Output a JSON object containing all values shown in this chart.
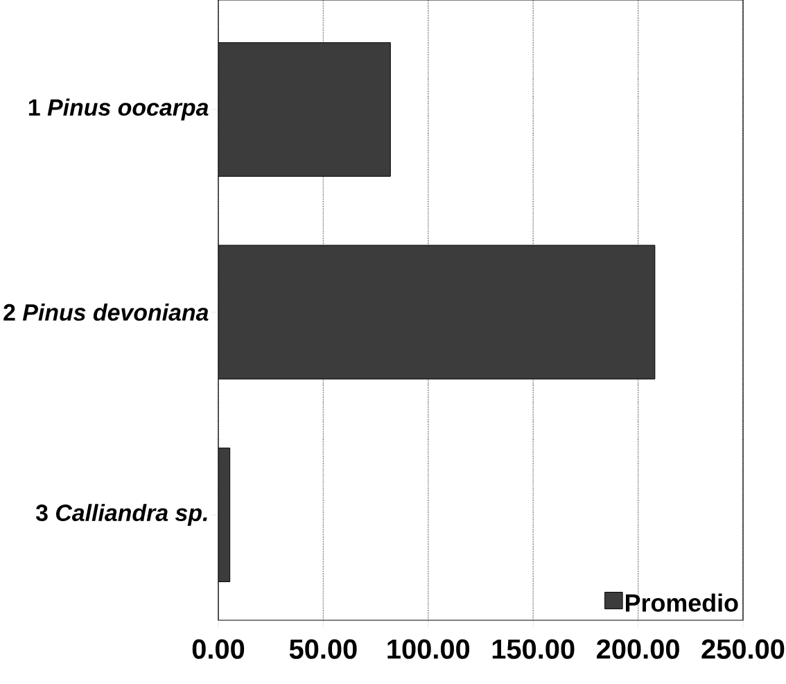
{
  "chart_data": {
    "type": "bar",
    "orientation": "horizontal",
    "categories": [
      "1 *Pinus oocarpa*",
      "2 *Pinus devoniana*",
      "3 *Calliandra sp.*"
    ],
    "series": [
      {
        "name": "Promedio",
        "color": "#3c3c3c",
        "values": [
          82,
          208,
          5.5
        ]
      }
    ],
    "xlim": [
      0,
      250
    ],
    "xticks": [
      {
        "value": 0,
        "label": "0.00"
      },
      {
        "value": 50,
        "label": "50.00"
      },
      {
        "value": 100,
        "label": "100.00"
      },
      {
        "value": 150,
        "label": "150.00"
      },
      {
        "value": 200,
        "label": "200.00"
      },
      {
        "value": 250,
        "label": "250.00"
      }
    ],
    "grid": "x",
    "legend": "bottom right"
  }
}
